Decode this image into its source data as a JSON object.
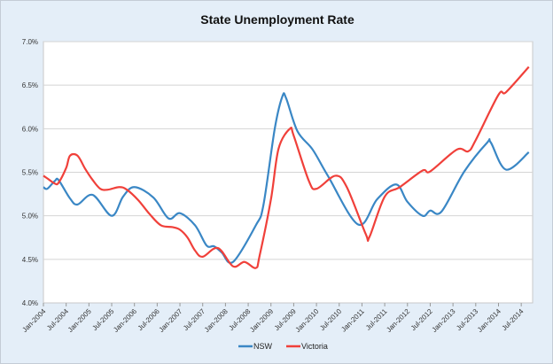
{
  "chart_data": {
    "type": "line",
    "title": "State Unemployment Rate",
    "xlabel": "",
    "ylabel": "",
    "ylim": [
      4.0,
      7.0
    ],
    "yticks": [
      "4.0%",
      "4.5%",
      "5.0%",
      "5.5%",
      "6.0%",
      "6.5%",
      "7.0%"
    ],
    "xticks": [
      "Jan-2004",
      "Jul-2004",
      "Jan-2005",
      "Jul-2005",
      "Jan-2006",
      "Jul-2006",
      "Jan-2007",
      "Jul-2007",
      "Jan-2008",
      "Jul-2008",
      "Jan-2009",
      "Jul-2009",
      "Jan-2010",
      "Jul-2010",
      "Jan-2011",
      "Jul-2011",
      "Jan-2012",
      "Jul-2012",
      "Jan-2013",
      "Jul-2013",
      "Jan-2014",
      "Jul-2014"
    ],
    "xlim": [
      "2004-01",
      "2014-10"
    ],
    "grid": "horizontal",
    "legend": "bottom",
    "background": "#e4eef8",
    "series": [
      {
        "name": "NSW",
        "color": "#3a87c5",
        "points": [
          [
            "2004-01",
            5.33
          ],
          [
            "2004-02",
            5.31
          ],
          [
            "2004-04",
            5.4
          ],
          [
            "2004-05",
            5.41
          ],
          [
            "2004-08",
            5.2
          ],
          [
            "2004-10",
            5.13
          ],
          [
            "2005-02",
            5.24
          ],
          [
            "2005-07",
            5.0
          ],
          [
            "2005-10",
            5.22
          ],
          [
            "2006-01",
            5.33
          ],
          [
            "2006-06",
            5.21
          ],
          [
            "2006-10",
            4.97
          ],
          [
            "2007-01",
            5.03
          ],
          [
            "2007-05",
            4.89
          ],
          [
            "2007-08",
            4.66
          ],
          [
            "2007-10",
            4.65
          ],
          [
            "2007-12",
            4.58
          ],
          [
            "2008-03",
            4.47
          ],
          [
            "2008-09",
            4.89
          ],
          [
            "2008-11",
            5.12
          ],
          [
            "2009-02",
            6.0
          ],
          [
            "2009-04",
            6.37
          ],
          [
            "2009-05",
            6.35
          ],
          [
            "2009-08",
            5.97
          ],
          [
            "2009-12",
            5.76
          ],
          [
            "2010-04",
            5.46
          ],
          [
            "2010-12",
            4.9
          ],
          [
            "2011-05",
            5.19
          ],
          [
            "2011-10",
            5.36
          ],
          [
            "2012-01",
            5.16
          ],
          [
            "2012-05",
            5.0
          ],
          [
            "2012-07",
            5.06
          ],
          [
            "2012-10",
            5.05
          ],
          [
            "2013-04",
            5.51
          ],
          [
            "2013-10",
            5.84
          ],
          [
            "2013-11",
            5.84
          ],
          [
            "2014-03",
            5.53
          ],
          [
            "2014-09",
            5.73
          ]
        ]
      },
      {
        "name": "Victoria",
        "color": "#f0403a",
        "points": [
          [
            "2004-01",
            5.46
          ],
          [
            "2004-02",
            5.43
          ],
          [
            "2004-04",
            5.37
          ],
          [
            "2004-05",
            5.38
          ],
          [
            "2004-07",
            5.55
          ],
          [
            "2004-08",
            5.69
          ],
          [
            "2004-10",
            5.69
          ],
          [
            "2004-12",
            5.54
          ],
          [
            "2005-02",
            5.41
          ],
          [
            "2005-04",
            5.31
          ],
          [
            "2005-06",
            5.3
          ],
          [
            "2005-09",
            5.33
          ],
          [
            "2005-11",
            5.3
          ],
          [
            "2006-02",
            5.18
          ],
          [
            "2006-05",
            5.02
          ],
          [
            "2006-08",
            4.89
          ],
          [
            "2006-11",
            4.87
          ],
          [
            "2007-01",
            4.84
          ],
          [
            "2007-03",
            4.75
          ],
          [
            "2007-05",
            4.6
          ],
          [
            "2007-07",
            4.53
          ],
          [
            "2007-11",
            4.63
          ],
          [
            "2008-03",
            4.42
          ],
          [
            "2008-06",
            4.47
          ],
          [
            "2008-09",
            4.4
          ],
          [
            "2008-10",
            4.54
          ],
          [
            "2009-01",
            5.19
          ],
          [
            "2009-03",
            5.77
          ],
          [
            "2009-06",
            6.0
          ],
          [
            "2009-07",
            5.92
          ],
          [
            "2009-11",
            5.4
          ],
          [
            "2010-01",
            5.31
          ],
          [
            "2010-06",
            5.46
          ],
          [
            "2010-09",
            5.33
          ],
          [
            "2011-02",
            4.79
          ],
          [
            "2011-03",
            4.76
          ],
          [
            "2011-07",
            5.22
          ],
          [
            "2011-11",
            5.33
          ],
          [
            "2012-05",
            5.52
          ],
          [
            "2012-07",
            5.51
          ],
          [
            "2013-02",
            5.76
          ],
          [
            "2013-05",
            5.74
          ],
          [
            "2013-07",
            5.87
          ],
          [
            "2014-01",
            6.39
          ],
          [
            "2014-03",
            6.42
          ],
          [
            "2014-09",
            6.71
          ]
        ]
      }
    ]
  }
}
